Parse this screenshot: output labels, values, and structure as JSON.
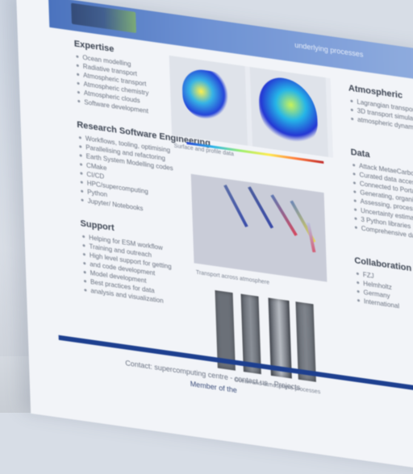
{
  "banner": {
    "subtitle": "underlying processes"
  },
  "left_column": {
    "sections": [
      {
        "heading": "Expertise",
        "items": [
          "Ocean modelling",
          "Radiative transport",
          "Atmospheric transport",
          "Atmospheric chemistry",
          "Atmospheric clouds",
          "Software development"
        ]
      },
      {
        "heading": "Research Software Engineering",
        "items": [
          "Workflows, tooling, optimising",
          "Parallelising and refactoring",
          "Earth System Modelling codes",
          "CMake",
          "CI/CD",
          "HPC/supercomputing",
          "Python",
          "Jupyter/ Notebooks"
        ]
      },
      {
        "heading": "Support",
        "items": [
          "Helping for ESM workflow",
          "Training and outreach",
          "High level support for getting",
          "and code development",
          "Model development",
          "Best practices for data",
          "analysis and visualization"
        ]
      }
    ]
  },
  "right_column": {
    "sections": [
      {
        "heading": "Atmospheric",
        "items": [
          "Lagrangian transport",
          "3D transport simulations",
          "atmospheric dynamics"
        ]
      },
      {
        "heading": "Data",
        "items": [
          "Attack MetaeCarbon",
          "Curated data access",
          "Connected to Portal",
          "Generating, organising",
          "Assessing, processing,",
          "Uncertainty estimation",
          "3 Python libraries",
          "Comprehensive data"
        ]
      },
      {
        "heading": "Collaboration",
        "items": [
          "FZJ",
          "Helmholtz",
          "Germany",
          "International"
        ]
      }
    ]
  },
  "figures": {
    "caption_top": "Surface and profile data",
    "caption_mid": "Transport across atmosphere",
    "caption_bottom": "Ocean and atmosphere processes"
  },
  "footer": {
    "line1": "Contact: supercomputing centre  -  contact us  -  Projects",
    "line2": "Member of the"
  },
  "colors": {
    "banner": "#3a66b8",
    "bottom_bar": "#1d3f8f",
    "background": "#d7dde6"
  }
}
